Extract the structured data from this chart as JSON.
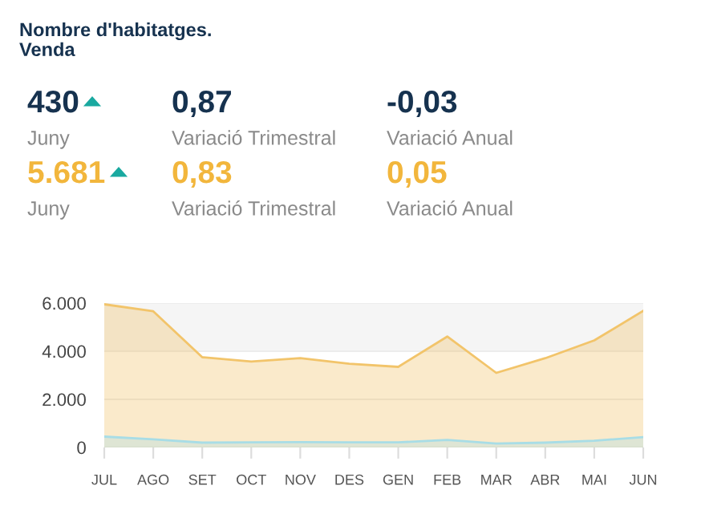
{
  "chart_data": [
    {
      "type": "other",
      "title": "Nombre d'habitatges.\nVenda",
      "annotations": [
        "430",
        "0,87",
        "-0,03",
        "Juny",
        "Variació Trimestral",
        "Variació Anual",
        "5.681",
        "0,83",
        "0,05",
        "Juny",
        "Variació Trimestral",
        "Variació Anual"
      ],
      "colors": [
        "#16324f",
        "#16324f",
        "#16324f",
        "#8a8a8a",
        "#8a8a8a",
        "#8a8a8a",
        "#f2b63c",
        "#f2b63c",
        "#f2b63c",
        "#8a8a8a",
        "#8a8a8a",
        "#8a8a8a"
      ]
    },
    {
      "type": "area",
      "categories": [
        "JUL",
        "AGO",
        "SET",
        "OCT",
        "NOV",
        "DES",
        "GEN",
        "FEB",
        "MAR",
        "ABR",
        "MAI",
        "JUN"
      ],
      "series": [
        {
          "color": "#f2c46a",
          "values": [
            5950,
            5660,
            3750,
            3570,
            3710,
            3480,
            3350,
            4610,
            3100,
            3710,
            4450,
            5680
          ]
        },
        {
          "color": "#a8dde6",
          "values": [
            450,
            340,
            200,
            210,
            220,
            210,
            210,
            315,
            160,
            200,
            280,
            430
          ]
        }
      ],
      "ylim": [
        0,
        6000
      ],
      "yticks": [
        {
          "value": 0,
          "label": "0"
        },
        {
          "value": 2000,
          "label": "2.000"
        },
        {
          "value": 4000,
          "label": "4.000"
        },
        {
          "value": 6000,
          "label": "6.000"
        }
      ],
      "grid": "y",
      "bands": [
        {
          "axis": "y",
          "from": 4000,
          "to": 6000,
          "color": "#f5f5f5"
        }
      ]
    }
  ]
}
